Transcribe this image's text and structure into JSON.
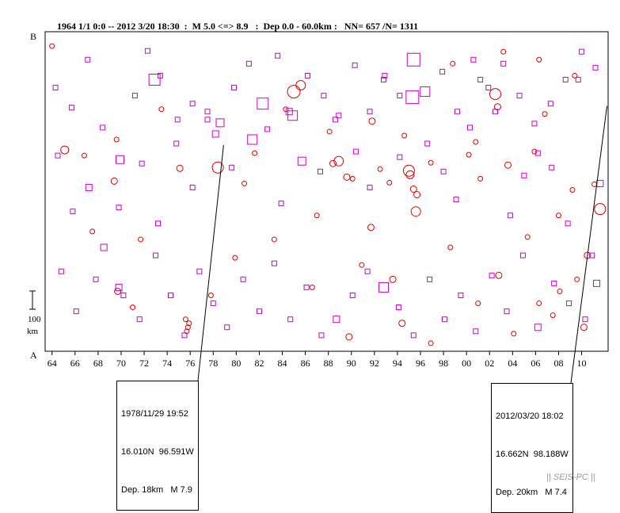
{
  "header": {
    "title": "1964 1/1 0:0 -- 2012 3/20 18:30  :  M 5.0 <=> 8.9   :  Dep 0.0 - 60.0km :   NN= 657 /N= 1311"
  },
  "chart_data": {
    "type": "scatter",
    "title": "1964 1/1 0:0 -- 2012 3/20 18:30  :  M 5.0 <=> 8.9   :  Dep 0.0 - 60.0km :   NN= 657 /N= 1311",
    "xlabel": "",
    "ylabel": "",
    "x_tick_labels": [
      "64",
      "66",
      "68",
      "70",
      "72",
      "74",
      "76",
      "78",
      "80",
      "82",
      "84",
      "86",
      "88",
      "90",
      "92",
      "94",
      "96",
      "98",
      "00",
      "02",
      "04",
      "06",
      "08",
      "10"
    ],
    "xlim": [
      1963.4,
      2012.3
    ],
    "y_axis_labels": {
      "top": "B",
      "bottom": "A"
    },
    "scale_bar": {
      "value": "100",
      "unit": "km"
    },
    "marker_legend": {
      "square": "magenta",
      "circle": "red"
    },
    "colors": {
      "squares": "#cc00cc",
      "circles": "#dd0000",
      "axis": "#000000"
    },
    "series": [
      {
        "marker": "circle",
        "points": [
          [
            1965.1,
            252,
            5
          ],
          [
            1969.4,
            213,
            4
          ],
          [
            1975.1,
            229,
            4
          ],
          [
            1978.4,
            230,
            7
          ],
          [
            1979.9,
            117,
            3
          ],
          [
            1981.6,
            248,
            3
          ],
          [
            1985.0,
            325,
            8
          ],
          [
            1985.6,
            333,
            6
          ],
          [
            1988.4,
            235,
            4
          ],
          [
            1988.9,
            238,
            6
          ],
          [
            1989.6,
            218,
            4
          ],
          [
            1990.1,
            216,
            3
          ],
          [
            1992.5,
            228,
            3
          ],
          [
            1993.3,
            211,
            3
          ],
          [
            1995.0,
            226,
            7
          ],
          [
            1995.1,
            221,
            5
          ],
          [
            1995.4,
            203,
            4
          ],
          [
            1995.6,
            175,
            6
          ],
          [
            1995.7,
            196,
            4
          ],
          [
            1996.9,
            236,
            3
          ],
          [
            2000.2,
            246,
            3
          ],
          [
            2001.2,
            216,
            3
          ],
          [
            2002.5,
            322,
            7
          ],
          [
            2002.7,
            306,
            4
          ],
          [
            2003.6,
            233,
            4
          ],
          [
            2006.8,
            297,
            3
          ],
          [
            2008.0,
            170,
            3
          ],
          [
            2009.2,
            202,
            3
          ],
          [
            2011.1,
            209,
            3
          ],
          [
            2011.6,
            178,
            7
          ],
          [
            1975.9,
            35,
            3
          ],
          [
            1975.8,
            30,
            3
          ],
          [
            1975.7,
            25,
            3
          ],
          [
            1975.6,
            40,
            3
          ],
          [
            1969.7,
            75,
            4
          ],
          [
            1971.0,
            55,
            3
          ],
          [
            1986.6,
            80,
            3
          ],
          [
            1989.8,
            18,
            4
          ],
          [
            1990.9,
            108,
            3
          ],
          [
            1993.6,
            90,
            4
          ],
          [
            1996.9,
            10,
            3
          ],
          [
            2002.8,
            95,
            4
          ],
          [
            2004.1,
            22,
            3
          ],
          [
            2006.3,
            60,
            3
          ],
          [
            2007.5,
            45,
            3
          ],
          [
            2008.1,
            75,
            3
          ],
          [
            2009.6,
            90,
            3
          ],
          [
            2010.5,
            120,
            4
          ],
          [
            1967.5,
            150,
            3
          ],
          [
            1971.7,
            140,
            3
          ],
          [
            1977.8,
            70,
            3
          ],
          [
            1983.3,
            140,
            3
          ],
          [
            1987.0,
            170,
            3
          ],
          [
            1991.7,
            155,
            4
          ],
          [
            1994.4,
            35,
            4
          ],
          [
            1998.6,
            130,
            3
          ],
          [
            2001.0,
            60,
            3
          ],
          [
            2005.3,
            143,
            3
          ],
          [
            2010.2,
            30,
            4
          ],
          [
            1964.0,
            382,
            3
          ],
          [
            1969.6,
            265,
            3
          ],
          [
            1973.5,
            303,
            3
          ],
          [
            1980.7,
            210,
            3
          ],
          [
            1984.3,
            303,
            3
          ],
          [
            1991.8,
            288,
            4
          ],
          [
            1998.8,
            360,
            3
          ],
          [
            2003.2,
            375,
            3
          ],
          [
            2006.3,
            365,
            3
          ],
          [
            2009.4,
            345,
            3
          ],
          [
            1966.8,
            245,
            3
          ],
          [
            1988.1,
            275,
            3
          ],
          [
            1994.6,
            270,
            3
          ],
          [
            2000.8,
            262,
            3
          ],
          [
            2005.9,
            250,
            3
          ]
        ]
      },
      {
        "marker": "square",
        "points": [
          [
            1964.5,
            245,
            3
          ],
          [
            1965.8,
            175,
            3
          ],
          [
            1967.2,
            205,
            4
          ],
          [
            1968.5,
            130,
            4
          ],
          [
            1969.8,
            180,
            3
          ],
          [
            1971.8,
            235,
            3
          ],
          [
            1973.2,
            160,
            3
          ],
          [
            1974.8,
            260,
            3
          ],
          [
            1976.2,
            205,
            3
          ],
          [
            1977.5,
            300,
            3
          ],
          [
            1978.2,
            272,
            4
          ],
          [
            1979.6,
            230,
            3
          ],
          [
            1981.4,
            265,
            6
          ],
          [
            1982.7,
            278,
            3
          ],
          [
            1983.9,
            185,
            3
          ],
          [
            1984.6,
            300,
            4
          ],
          [
            1985.7,
            238,
            5
          ],
          [
            1987.3,
            225,
            3
          ],
          [
            1988.6,
            290,
            3
          ],
          [
            1990.4,
            250,
            3
          ],
          [
            1991.6,
            205,
            3
          ],
          [
            1992.8,
            340,
            3
          ],
          [
            1994.2,
            243,
            3
          ],
          [
            1995.3,
            318,
            8
          ],
          [
            1996.6,
            260,
            3
          ],
          [
            1998.0,
            225,
            3
          ],
          [
            1999.1,
            190,
            3
          ],
          [
            2000.3,
            280,
            3
          ],
          [
            2001.2,
            340,
            3
          ],
          [
            2002.5,
            300,
            3
          ],
          [
            2003.8,
            170,
            3
          ],
          [
            2005.0,
            220,
            3
          ],
          [
            2006.2,
            248,
            3
          ],
          [
            2007.4,
            230,
            3
          ],
          [
            2008.8,
            160,
            3
          ],
          [
            2009.7,
            340,
            3
          ],
          [
            2010.9,
            120,
            3
          ],
          [
            2011.6,
            210,
            4
          ],
          [
            1964.8,
            100,
            3
          ],
          [
            1966.1,
            50,
            3
          ],
          [
            1967.8,
            90,
            3
          ],
          [
            1969.8,
            80,
            4
          ],
          [
            1970.2,
            70,
            3
          ],
          [
            1971.6,
            40,
            3
          ],
          [
            1973.0,
            120,
            3
          ],
          [
            1974.3,
            70,
            3
          ],
          [
            1975.5,
            20,
            3
          ],
          [
            1976.8,
            100,
            3
          ],
          [
            1978.0,
            60,
            3
          ],
          [
            1979.2,
            30,
            3
          ],
          [
            1980.6,
            90,
            3
          ],
          [
            1982.0,
            50,
            3
          ],
          [
            1983.3,
            110,
            3
          ],
          [
            1984.7,
            40,
            3
          ],
          [
            1986.1,
            80,
            3
          ],
          [
            1987.4,
            20,
            3
          ],
          [
            1988.7,
            40,
            4
          ],
          [
            1990.1,
            70,
            3
          ],
          [
            1991.4,
            100,
            3
          ],
          [
            1992.8,
            80,
            6
          ],
          [
            1994.1,
            55,
            3
          ],
          [
            1995.4,
            20,
            3
          ],
          [
            1996.8,
            90,
            3
          ],
          [
            1998.1,
            40,
            3
          ],
          [
            1999.5,
            70,
            3
          ],
          [
            2000.8,
            25,
            3
          ],
          [
            2002.2,
            95,
            3
          ],
          [
            2003.5,
            50,
            3
          ],
          [
            2004.9,
            120,
            3
          ],
          [
            2006.2,
            30,
            4
          ],
          [
            2007.6,
            85,
            3
          ],
          [
            2008.9,
            60,
            3
          ],
          [
            2010.3,
            40,
            3
          ],
          [
            2011.3,
            85,
            4
          ],
          [
            1964.3,
            330,
            3
          ],
          [
            1965.7,
            305,
            3
          ],
          [
            1967.1,
            365,
            3
          ],
          [
            1968.4,
            280,
            3
          ],
          [
            1969.9,
            240,
            5
          ],
          [
            1971.2,
            320,
            3
          ],
          [
            1972.3,
            376,
            3
          ],
          [
            1972.9,
            340,
            7
          ],
          [
            1973.4,
            345,
            3
          ],
          [
            1974.9,
            290,
            3
          ],
          [
            1976.2,
            310,
            3
          ],
          [
            1977.5,
            290,
            3
          ],
          [
            1978.6,
            286,
            5
          ],
          [
            1979.8,
            330,
            3
          ],
          [
            1981.1,
            360,
            3
          ],
          [
            1982.3,
            310,
            7
          ],
          [
            1983.6,
            370,
            3
          ],
          [
            1984.9,
            295,
            6
          ],
          [
            1986.2,
            345,
            3
          ],
          [
            1987.6,
            320,
            3
          ],
          [
            1988.9,
            295,
            3
          ],
          [
            1990.3,
            358,
            3
          ],
          [
            1991.6,
            300,
            3
          ],
          [
            1992.9,
            345,
            3
          ],
          [
            1994.2,
            320,
            3
          ],
          [
            1995.4,
            365,
            8
          ],
          [
            1996.4,
            325,
            6
          ],
          [
            1997.9,
            350,
            3
          ],
          [
            1999.2,
            300,
            3
          ],
          [
            2000.6,
            365,
            3
          ],
          [
            2001.9,
            330,
            3
          ],
          [
            2003.2,
            360,
            3
          ],
          [
            2004.6,
            320,
            3
          ],
          [
            2005.9,
            285,
            3
          ],
          [
            2007.3,
            310,
            3
          ],
          [
            2008.6,
            340,
            3
          ],
          [
            2010.0,
            375,
            3
          ],
          [
            2011.2,
            355,
            3
          ]
        ]
      }
    ],
    "annotations": [
      {
        "lines": [
          "1978/11/29 19:52",
          "16.010N  96.591W",
          "Dep. 18km   M 7.9"
        ],
        "x": 1978.9,
        "y": 258
      },
      {
        "lines": [
          "2012/03/20 18:02",
          "16.662N  98.188W",
          "Dep. 20km   M 7.4"
        ],
        "x": 2012.2,
        "y": 307
      }
    ]
  },
  "footer": {
    "credit": "|| SEIS-PC ||"
  }
}
